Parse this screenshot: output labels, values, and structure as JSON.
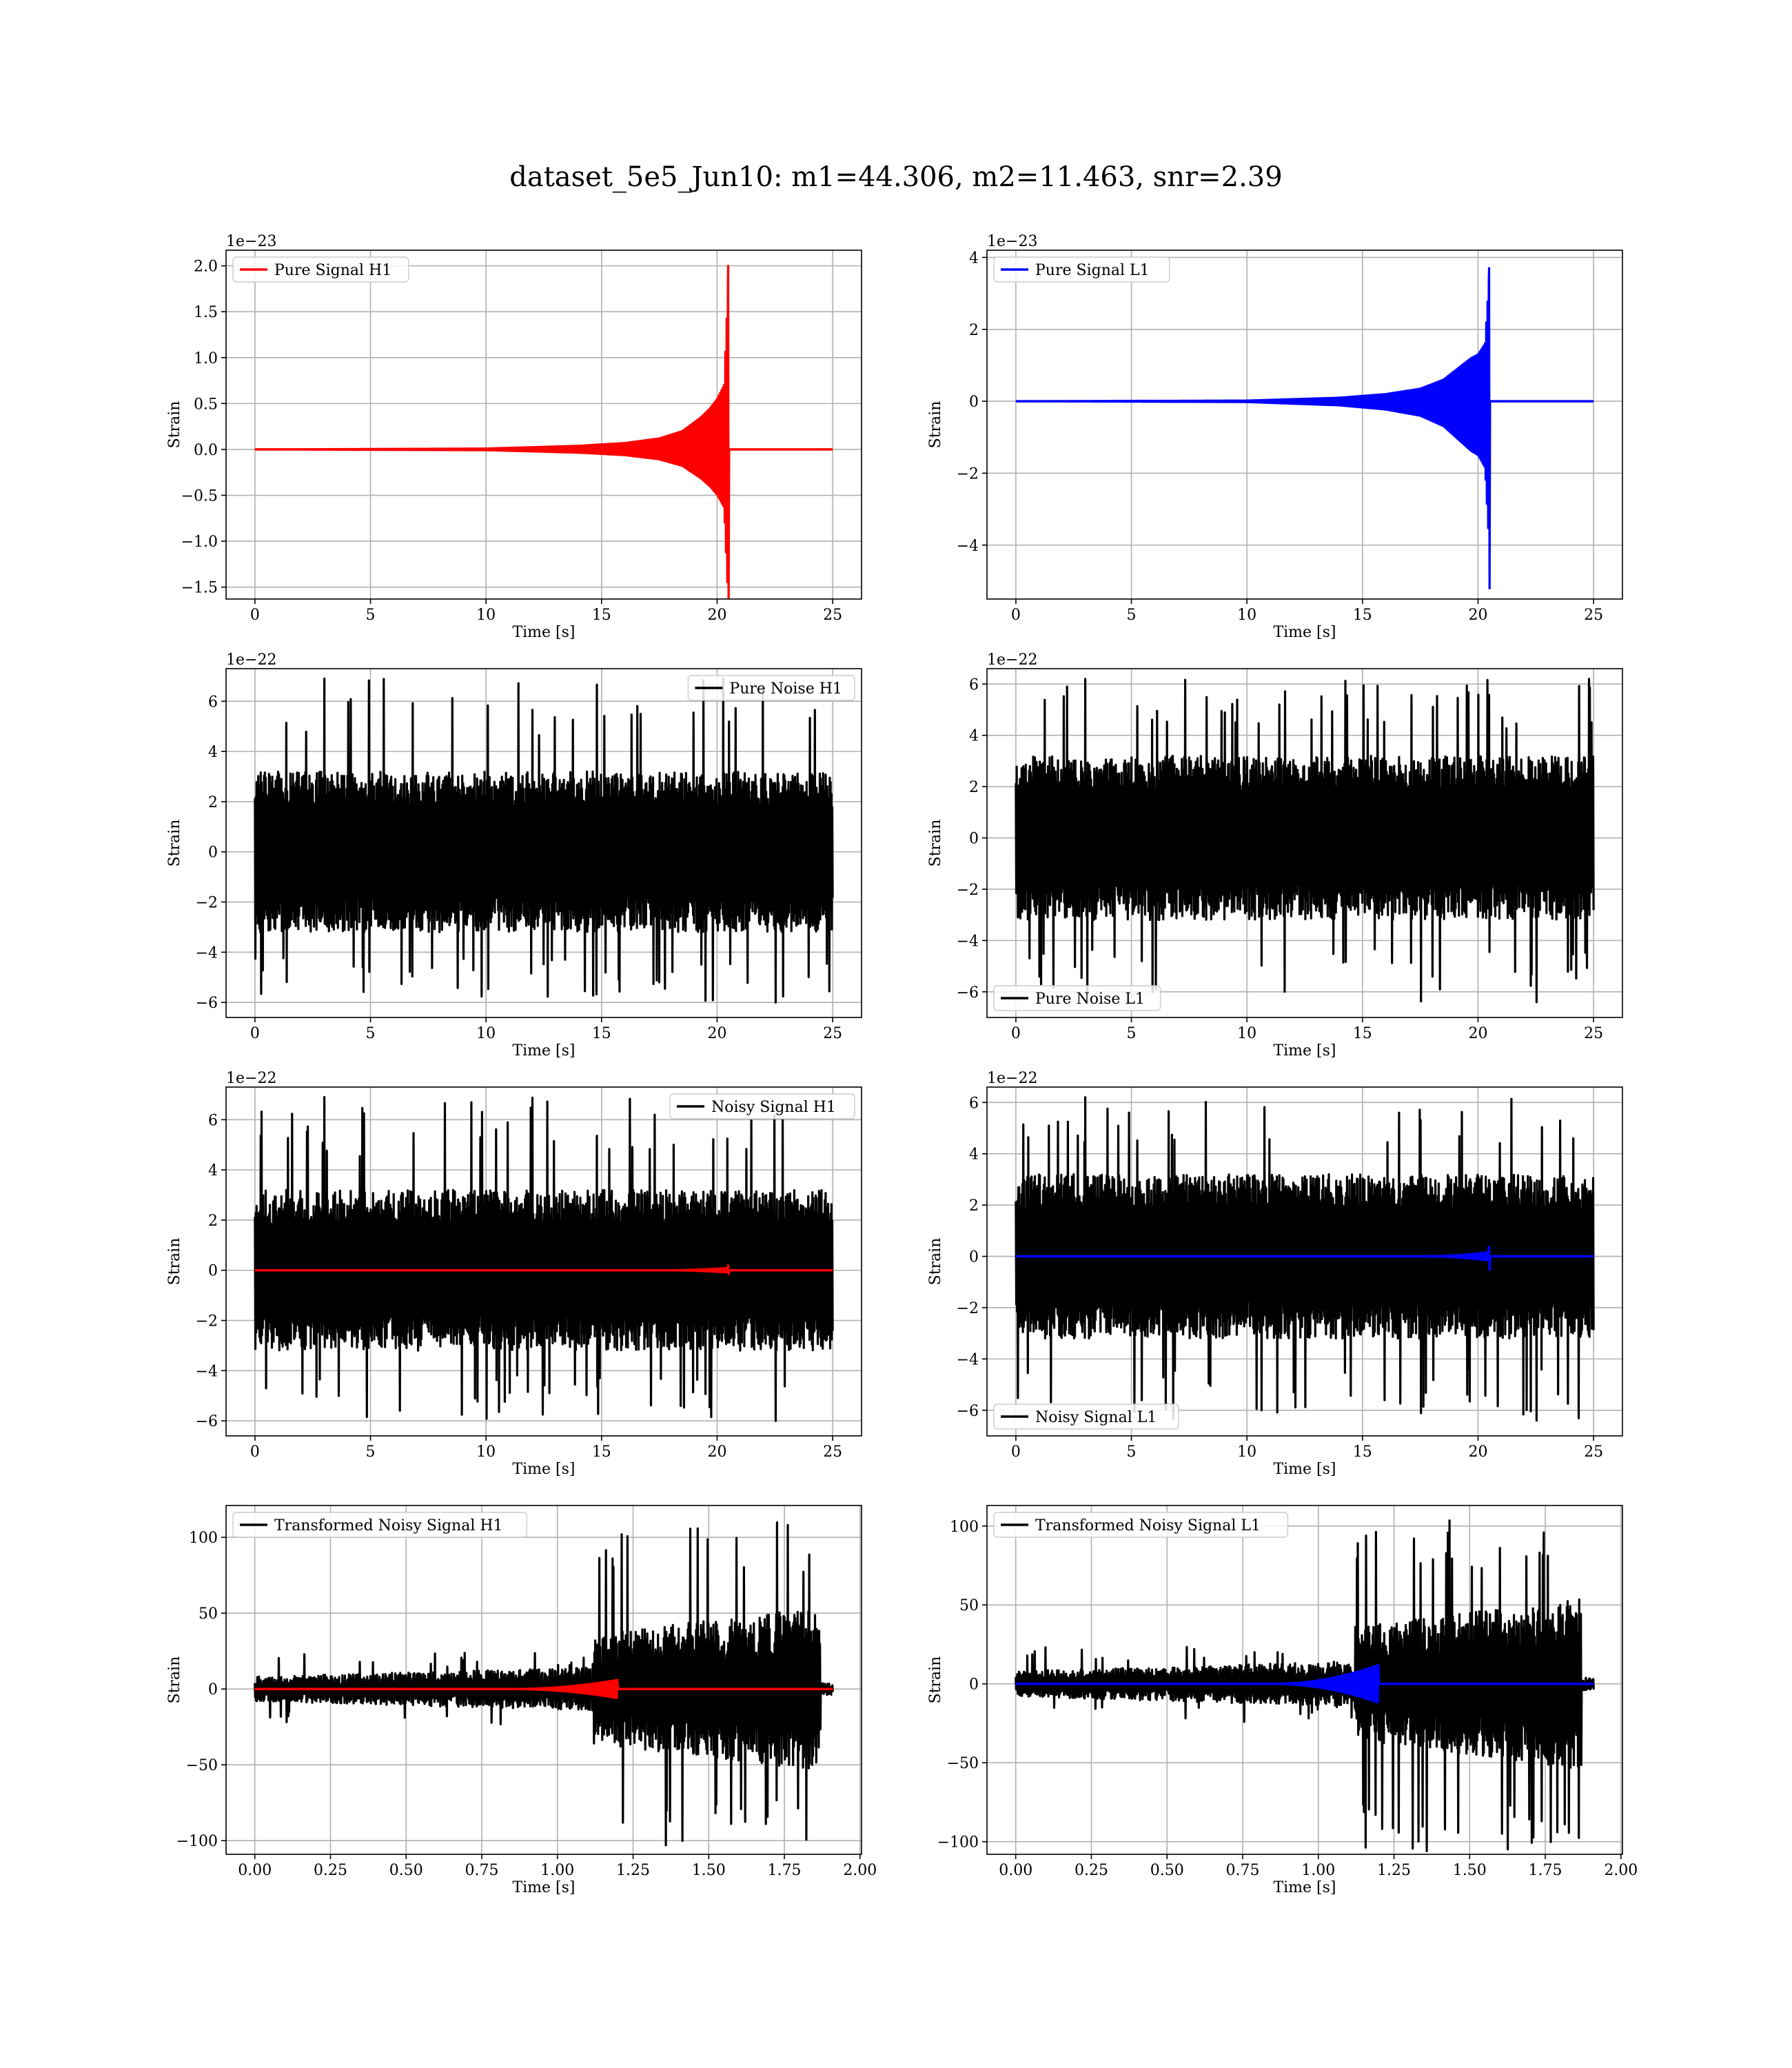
{
  "figure": {
    "title": "dataset_5e5_Jun10: m1=44.306, m2=11.463, snr=2.39"
  },
  "chart_data": [
    {
      "type": "line",
      "kind": "chirp",
      "xlabel": "Time [s]",
      "ylabel": "Strain",
      "offset_text": "1e−23",
      "xlim": [
        -1.25,
        26.25
      ],
      "ylim": [
        -1.63,
        2.17
      ],
      "xticks": [
        0,
        5,
        10,
        15,
        20,
        25
      ],
      "xtick_labels": [
        "0",
        "5",
        "10",
        "15",
        "20",
        "25"
      ],
      "yticks": [
        -1.5,
        -1.0,
        -0.5,
        0.0,
        0.5,
        1.0,
        1.5,
        2.0
      ],
      "ytick_labels": [
        "−1.5",
        "−1.0",
        "−0.5",
        "0.0",
        "0.5",
        "1.0",
        "1.5",
        "2.0"
      ],
      "legend_loc": "upper left",
      "series": [
        {
          "name": "Pure Signal H1",
          "color": "#ff0000",
          "x_range": [
            0,
            25
          ],
          "merger_time": 20.5,
          "ringdown_end": 20.6,
          "peak_max": 2.0,
          "peak_min": -1.5,
          "envelope": {
            "t": [
              0,
              10,
              14,
              16,
              17.5,
              18.5,
              19.3,
              19.7,
              20.0,
              20.3,
              20.5
            ],
            "a": [
              0.0,
              0.01,
              0.04,
              0.07,
              0.12,
              0.2,
              0.35,
              0.45,
              0.55,
              0.7,
              2.0
            ]
          }
        }
      ]
    },
    {
      "type": "line",
      "kind": "chirp",
      "xlabel": "Time [s]",
      "ylabel": "Strain",
      "offset_text": "1e−23",
      "xlim": [
        -1.25,
        26.25
      ],
      "ylim": [
        -5.5,
        4.2
      ],
      "xticks": [
        0,
        5,
        10,
        15,
        20,
        25
      ],
      "xtick_labels": [
        "0",
        "5",
        "10",
        "15",
        "20",
        "25"
      ],
      "yticks": [
        -4,
        -2,
        0,
        2,
        4
      ],
      "ytick_labels": [
        "−4",
        "−2",
        "0",
        "2",
        "4"
      ],
      "legend_loc": "upper left",
      "series": [
        {
          "name": "Pure Signal L1",
          "color": "#0000ff",
          "x_range": [
            0,
            25
          ],
          "merger_time": 20.5,
          "ringdown_end": 20.6,
          "peak_max": 3.7,
          "peak_min": -5.2,
          "envelope": {
            "t": [
              0,
              10,
              14,
              16,
              17.5,
              18.5,
              19.3,
              19.7,
              20.0,
              20.3,
              20.5
            ],
            "a": [
              0.0,
              0.02,
              0.1,
              0.2,
              0.35,
              0.6,
              1.0,
              1.2,
              1.3,
              1.6,
              3.7
            ]
          }
        }
      ]
    },
    {
      "type": "line",
      "kind": "noise",
      "xlabel": "Time [s]",
      "ylabel": "Strain",
      "offset_text": "1e−22",
      "xlim": [
        -1.25,
        26.25
      ],
      "ylim": [
        -6.6,
        7.3
      ],
      "xticks": [
        0,
        5,
        10,
        15,
        20,
        25
      ],
      "xtick_labels": [
        "0",
        "5",
        "10",
        "15",
        "20",
        "25"
      ],
      "yticks": [
        -6,
        -4,
        -2,
        0,
        2,
        4,
        6
      ],
      "ytick_labels": [
        "−6",
        "−4",
        "−2",
        "0",
        "2",
        "4",
        "6"
      ],
      "legend_loc": "upper right",
      "series": [
        {
          "name": "Pure Noise H1",
          "color": "#000000",
          "x_range": [
            0,
            25
          ],
          "core": 3.2,
          "spike_max": 6.9,
          "spike_min": -6.0,
          "seed": 11
        }
      ]
    },
    {
      "type": "line",
      "kind": "noise",
      "xlabel": "Time [s]",
      "ylabel": "Strain",
      "offset_text": "1e−22",
      "xlim": [
        -1.25,
        26.25
      ],
      "ylim": [
        -7.0,
        6.6
      ],
      "xticks": [
        0,
        5,
        10,
        15,
        20,
        25
      ],
      "xtick_labels": [
        "0",
        "5",
        "10",
        "15",
        "20",
        "25"
      ],
      "yticks": [
        -6,
        -4,
        -2,
        0,
        2,
        4,
        6
      ],
      "ytick_labels": [
        "−6",
        "−4",
        "−2",
        "0",
        "2",
        "4",
        "6"
      ],
      "legend_loc": "lower left",
      "series": [
        {
          "name": "Pure Noise L1",
          "color": "#000000",
          "x_range": [
            0,
            25
          ],
          "core": 3.2,
          "spike_max": 6.2,
          "spike_min": -6.4,
          "seed": 23
        }
      ]
    },
    {
      "type": "line",
      "kind": "noisy",
      "xlabel": "Time [s]",
      "ylabel": "Strain",
      "offset_text": "1e−22",
      "xlim": [
        -1.25,
        26.25
      ],
      "ylim": [
        -6.6,
        7.3
      ],
      "xticks": [
        0,
        5,
        10,
        15,
        20,
        25
      ],
      "xtick_labels": [
        "0",
        "5",
        "10",
        "15",
        "20",
        "25"
      ],
      "yticks": [
        -6,
        -4,
        -2,
        0,
        2,
        4,
        6
      ],
      "ytick_labels": [
        "−6",
        "−4",
        "−2",
        "0",
        "2",
        "4",
        "6"
      ],
      "legend_loc": "upper right",
      "series": [
        {
          "name": "Noisy Signal H1",
          "color": "#000000",
          "x_range": [
            0,
            25
          ],
          "core": 3.2,
          "spike_max": 6.9,
          "spike_min": -6.0,
          "seed": 11
        },
        {
          "name": "",
          "color": "#ff0000",
          "x_range": [
            0,
            25
          ],
          "merger_time": 20.5,
          "peak_max": 0.2,
          "peak_min": -0.15
        }
      ]
    },
    {
      "type": "line",
      "kind": "noisy",
      "xlabel": "Time [s]",
      "ylabel": "Strain",
      "offset_text": "1e−22",
      "xlim": [
        -1.25,
        26.25
      ],
      "ylim": [
        -7.0,
        6.6
      ],
      "xticks": [
        0,
        5,
        10,
        15,
        20,
        25
      ],
      "xtick_labels": [
        "0",
        "5",
        "10",
        "15",
        "20",
        "25"
      ],
      "yticks": [
        -6,
        -4,
        -2,
        0,
        2,
        4,
        6
      ],
      "ytick_labels": [
        "−6",
        "−4",
        "−2",
        "0",
        "2",
        "4",
        "6"
      ],
      "legend_loc": "lower left",
      "series": [
        {
          "name": "Noisy Signal L1",
          "color": "#000000",
          "x_range": [
            0,
            25
          ],
          "core": 3.2,
          "spike_max": 6.2,
          "spike_min": -6.4,
          "seed": 23
        },
        {
          "name": "",
          "color": "#0000ff",
          "x_range": [
            0,
            25
          ],
          "merger_time": 20.5,
          "peak_max": 0.37,
          "peak_min": -0.52
        }
      ]
    },
    {
      "type": "line",
      "kind": "transformed",
      "xlabel": "Time [s]",
      "ylabel": "Strain",
      "offset_text": "",
      "xlim": [
        -0.095,
        2.005
      ],
      "ylim": [
        -109,
        121
      ],
      "xticks": [
        0.0,
        0.25,
        0.5,
        0.75,
        1.0,
        1.25,
        1.5,
        1.75,
        2.0
      ],
      "xtick_labels": [
        "0.00",
        "0.25",
        "0.50",
        "0.75",
        "1.00",
        "1.25",
        "1.50",
        "1.75",
        "2.00"
      ],
      "yticks": [
        -100,
        -50,
        0,
        50,
        100
      ],
      "ytick_labels": [
        "−100",
        "−50",
        "0",
        "50",
        "100"
      ],
      "legend_loc": "upper left",
      "series": [
        {
          "name": "Transformed Noisy Signal H1",
          "color": "#000000",
          "x_range": [
            0,
            1.91
          ],
          "jump_time": 1.12,
          "drop_time": 1.87,
          "pre_amp": 8,
          "post_amp": 45,
          "spike_max": 110,
          "spike_min": -103,
          "seed": 37
        },
        {
          "name": "",
          "color": "#ff0000",
          "x_range": [
            0,
            1.91
          ],
          "burst_time": 1.2,
          "burst_amp": 6
        }
      ]
    },
    {
      "type": "line",
      "kind": "transformed",
      "xlabel": "Time [s]",
      "ylabel": "Strain",
      "offset_text": "",
      "xlim": [
        -0.095,
        2.005
      ],
      "ylim": [
        -108,
        113
      ],
      "xticks": [
        0.0,
        0.25,
        0.5,
        0.75,
        1.0,
        1.25,
        1.5,
        1.75,
        2.0
      ],
      "xtick_labels": [
        "0.00",
        "0.25",
        "0.50",
        "0.75",
        "1.00",
        "1.25",
        "1.50",
        "1.75",
        "2.00"
      ],
      "yticks": [
        -100,
        -50,
        0,
        50,
        100
      ],
      "ytick_labels": [
        "−100",
        "−50",
        "0",
        "50",
        "100"
      ],
      "legend_loc": "upper left",
      "series": [
        {
          "name": "Transformed Noisy Signal L1",
          "color": "#000000",
          "x_range": [
            0,
            1.91
          ],
          "jump_time": 1.12,
          "drop_time": 1.87,
          "pre_amp": 8,
          "post_amp": 45,
          "spike_max": 104,
          "spike_min": -106,
          "seed": 41
        },
        {
          "name": "",
          "color": "#0000ff",
          "x_range": [
            0,
            1.91
          ],
          "burst_time": 1.2,
          "burst_amp": 12
        }
      ]
    }
  ]
}
